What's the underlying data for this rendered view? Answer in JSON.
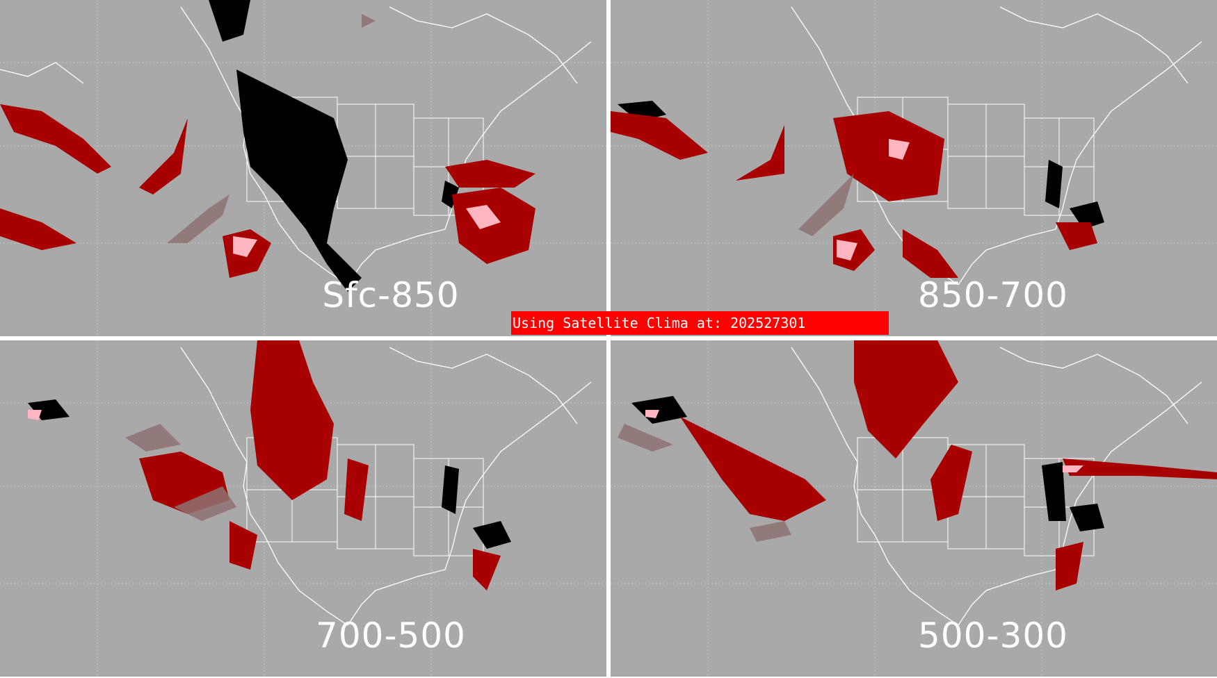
{
  "banner": {
    "text": "Using Satellite Clima at: 202527301"
  },
  "panels": [
    {
      "id": "sfc-850",
      "label": "Sfc-850"
    },
    {
      "id": "850-700",
      "label": "850-700"
    },
    {
      "id": "700-500",
      "label": "700-500"
    },
    {
      "id": "500-300",
      "label": "500-300"
    }
  ],
  "colors": {
    "background": "#a9a9a9",
    "light_shade": "#8f7272",
    "medium_shade": "#a80000",
    "high_shade": "#ffb6c1",
    "max_shade": "#000000",
    "borders": "#ffffff"
  }
}
